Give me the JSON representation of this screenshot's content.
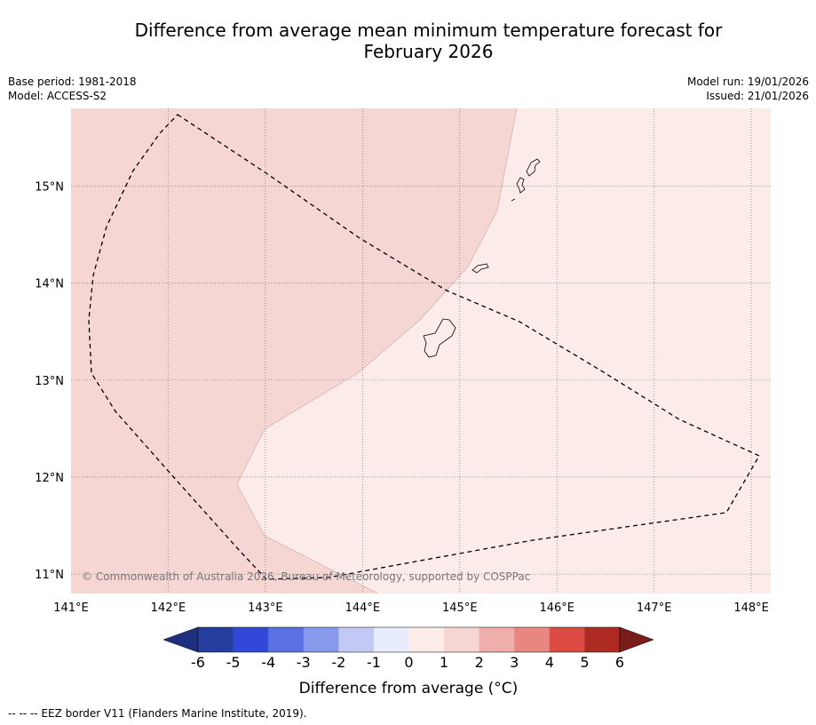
{
  "title": {
    "line1": "Difference from average mean minimum temperature forecast for",
    "line2": "February 2026"
  },
  "meta_left": {
    "base_period": "Base period: 1981-2018",
    "model": "Model: ACCESS-S2"
  },
  "meta_right": {
    "model_run": "Model run: 19/01/2026",
    "issued": "Issued: 21/01/2026"
  },
  "map": {
    "lon_range": [
      141.0,
      148.2
    ],
    "lat_range": [
      10.8,
      15.8
    ],
    "lon_ticks": [
      141,
      142,
      143,
      144,
      145,
      146,
      147,
      148
    ],
    "lon_tick_labels": [
      "141°E",
      "142°E",
      "143°E",
      "144°E",
      "145°E",
      "146°E",
      "147°E",
      "148°E"
    ],
    "lat_ticks": [
      15,
      14,
      13,
      12,
      11
    ],
    "lat_tick_labels": [
      "15°N",
      "14°N",
      "13°N",
      "12°N",
      "11°N"
    ],
    "copyright": "© Commonwealth of Australia 2026, Bureau of Meteorology, supported by COSPPac",
    "regions": [
      {
        "category": "1 to 2",
        "color": "#f5d6d3"
      },
      {
        "category": "0 to 1",
        "color": "#fbebe9"
      }
    ]
  },
  "colorbar": {
    "title": "Difference from average (°C)",
    "tick_labels": [
      "-6",
      "-5",
      "-4",
      "-3",
      "-2",
      "-1",
      "0",
      "1",
      "2",
      "3",
      "4",
      "5",
      "6"
    ],
    "colors": [
      "#263e9e",
      "#3148d9",
      "#5b71e3",
      "#8898ea",
      "#c2c9f4",
      "#e7ebfb",
      "#fbebe9",
      "#f5d6d3",
      "#eeaeaa",
      "#e78780",
      "#dc4a41",
      "#ae2b24"
    ],
    "under_color": "#1f2f80",
    "over_color": "#7a1d1a"
  },
  "footer": {
    "legend_text": "-- -- -- EEZ border V11 (Flanders Marine Institute, 2019)."
  }
}
